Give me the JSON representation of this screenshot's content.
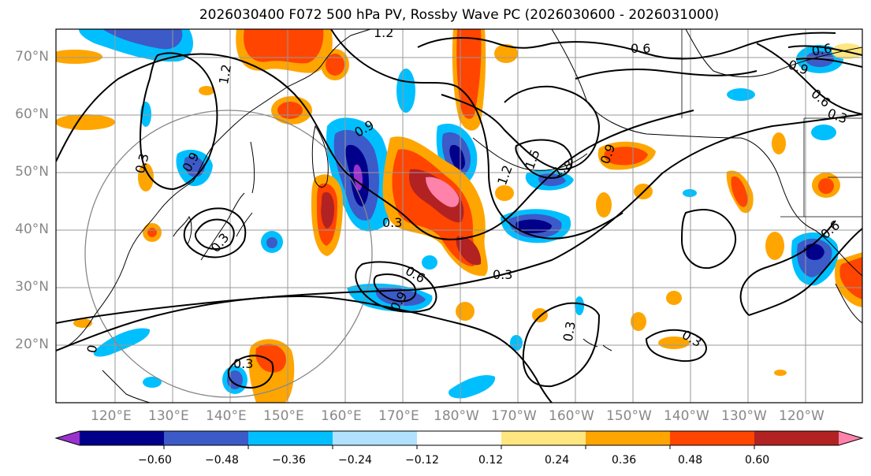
{
  "title": "2026030400 F072 500 hPa PV, Rossby Wave PC (2026030600 - 2026031000)",
  "lat_labels": [
    "70°N",
    "60°N",
    "50°N",
    "40°N",
    "30°N",
    "20°N"
  ],
  "lon_labels": [
    "120°E",
    "130°E",
    "140°E",
    "150°E",
    "160°E",
    "170°E",
    "180°W",
    "170°W",
    "160°W",
    "150°W",
    "140°W",
    "130°W",
    "120°W"
  ],
  "colorbar": {
    "ticks": [
      "−0.60",
      "−0.48",
      "−0.36",
      "−0.24",
      "−0.12",
      "0.12",
      "0.24",
      "0.36",
      "0.48",
      "0.60"
    ],
    "colors": [
      "#9a32cd",
      "#00008b",
      "#3c5ac8",
      "#00bfff",
      "#b0e2ff",
      "#ffffff",
      "#ffe680",
      "#ffa500",
      "#ff4500",
      "#b22222",
      "#ff82ab"
    ]
  },
  "contour_labels": [
    "1.2",
    "1.2",
    "0.6",
    "0.9",
    "0.6",
    "0.3",
    "0.9",
    "0.9",
    "1.2",
    "1.5",
    "1.8",
    "0.3",
    "0.3",
    "0.6",
    "0.9",
    "0.3",
    "0.3",
    "0.3",
    "0.6",
    "0.3",
    "0.9",
    "0.6",
    "0.3",
    "0"
  ],
  "colors": {
    "land_outline": "#000000",
    "grid": "#999999",
    "frame": "#000000"
  }
}
